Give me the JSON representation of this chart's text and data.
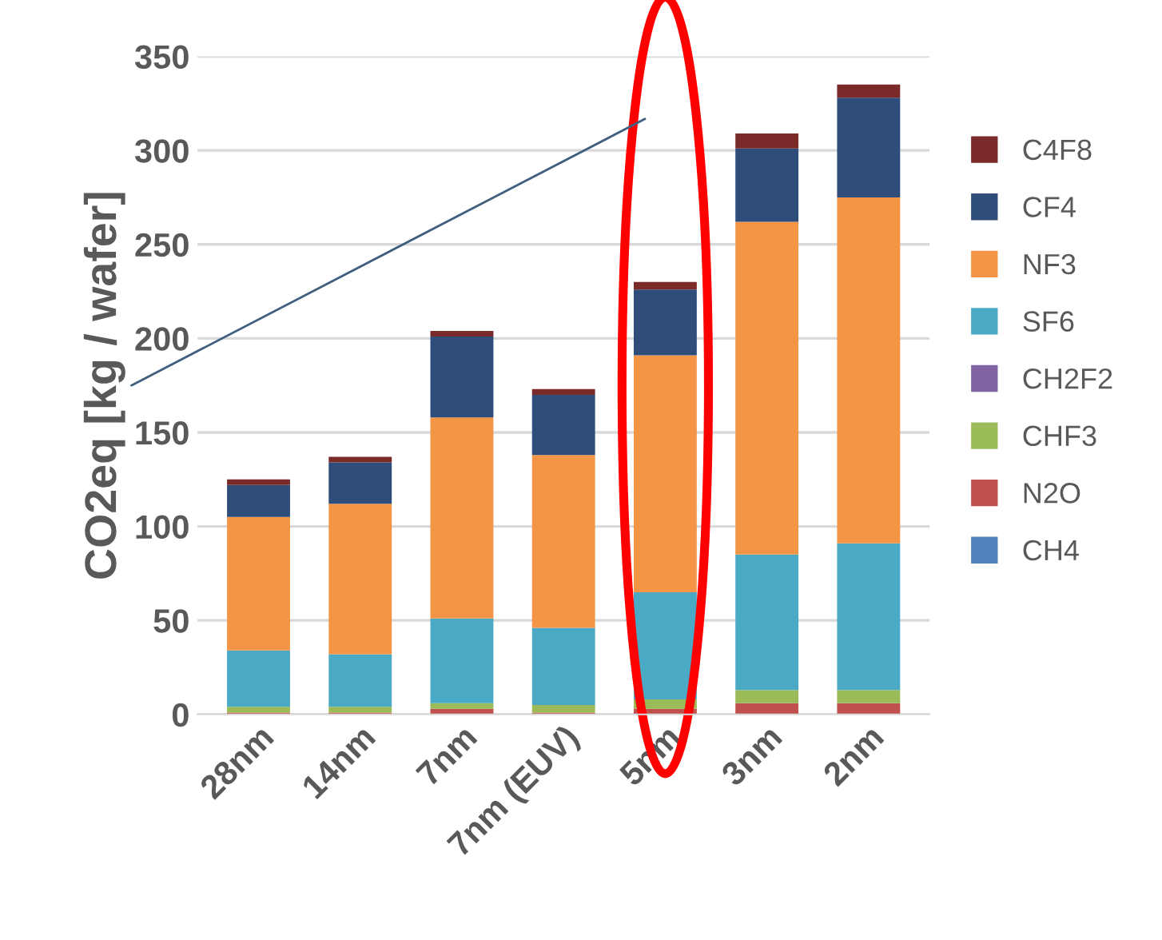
{
  "chart_data": {
    "type": "bar",
    "stacked": true,
    "ylabel": "CO2eq [kg / wafer]",
    "categories": [
      "28nm",
      "14nm",
      "7nm",
      "7nm (EUV)",
      "5nm",
      "3nm",
      "2nm"
    ],
    "series": [
      {
        "name": "CH4",
        "color": "#4f81bd",
        "values": [
          0,
          0,
          0,
          0,
          0,
          0,
          0
        ]
      },
      {
        "name": "N2O",
        "color": "#c0504d",
        "values": [
          1,
          1,
          3,
          1,
          3,
          6,
          6
        ]
      },
      {
        "name": "CHF3",
        "color": "#9bbb59",
        "values": [
          3,
          3,
          3,
          4,
          5,
          7,
          7
        ]
      },
      {
        "name": "CH2F2",
        "color": "#8064a2",
        "values": [
          0,
          0,
          0,
          0,
          0,
          0,
          0
        ]
      },
      {
        "name": "SF6",
        "color": "#4aaac6",
        "values": [
          30,
          28,
          45,
          41,
          57,
          72,
          78
        ]
      },
      {
        "name": "NF3",
        "color": "#f39545",
        "values": [
          71,
          80,
          107,
          92,
          126,
          177,
          184
        ]
      },
      {
        "name": "CF4",
        "color": "#2e4d7b",
        "values": [
          17,
          22,
          43,
          32,
          35,
          39,
          53
        ]
      },
      {
        "name": "C4F8",
        "color": "#7b2a2a",
        "values": [
          3,
          3,
          3,
          3,
          4,
          8,
          7
        ]
      }
    ],
    "ylim": [
      0,
      350
    ],
    "yticks": [
      0,
      50,
      100,
      150,
      200,
      250,
      300,
      350
    ],
    "grid": "y",
    "legend": "right"
  }
}
